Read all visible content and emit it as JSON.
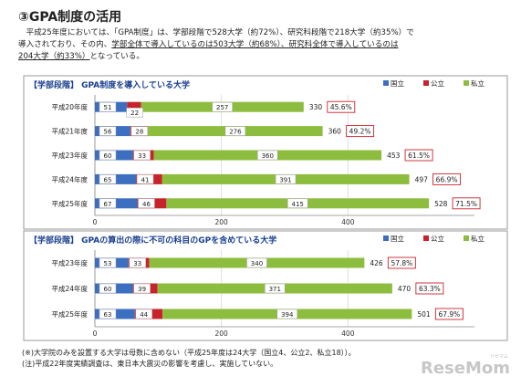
{
  "page": {
    "title": "③GPA制度の活用",
    "intro": {
      "line1": "　平成25年度においては、「GPA制度」は、学部段階で528大学（約72%）、研究科段階で218大学（約35%）で",
      "line2_a": "導入されており、その内、",
      "line2_b": "学部全体で導入しているのは503大学（約68%）、研究科全体で導入しているのは",
      "line3_a": "204大学（約33%）",
      "line3_b": "となっている。"
    },
    "notes": [
      "(※)大学院のみを設置する大学は母数に含めない（平成25年度は24大学（国立4、公立2、私立18））。",
      "(注)平成22年度実績調査は、東日本大震災の影響を考慮し、実施していない。"
    ],
    "logo": "ReseMom",
    "logo_ruby": "リセマム"
  },
  "colors": {
    "national": "#3c6fbf",
    "public": "#c8232c",
    "private": "#8dbd3e",
    "label_border": "#c8232c",
    "panel_bg": "#ffffff"
  },
  "chart_data": [
    {
      "type": "bar",
      "orientation": "horizontal",
      "stacked": true,
      "title": "【学部段階】 GPA制度を導入している大学",
      "legend": [
        "国立",
        "公立",
        "私立"
      ],
      "legend_position": "top-right",
      "categories": [
        "平成20年度",
        "平成21年度",
        "平成23年度",
        "平成24年度",
        "平成25年度"
      ],
      "series": [
        {
          "name": "国立",
          "values": [
            51,
            56,
            60,
            65,
            67
          ]
        },
        {
          "name": "公立",
          "values": [
            22,
            28,
            33,
            41,
            46
          ]
        },
        {
          "name": "私立",
          "values": [
            257,
            276,
            360,
            391,
            415
          ]
        }
      ],
      "totals": [
        330,
        360,
        453,
        497,
        528
      ],
      "percentages": [
        "45.6%",
        "49.2%",
        "61.5%",
        "66.9%",
        "71.5%"
      ],
      "xlim": [
        0,
        600
      ],
      "xticks": [
        0,
        200,
        400
      ],
      "grid": true
    },
    {
      "type": "bar",
      "orientation": "horizontal",
      "stacked": true,
      "title": "【学部段階】 GPAの算出の際に不可の科目のGPを含めている大学",
      "legend": [
        "国立",
        "公立",
        "私立"
      ],
      "legend_position": "top-right",
      "categories": [
        "平成23年度",
        "平成24年度",
        "平成25年度"
      ],
      "series": [
        {
          "name": "国立",
          "values": [
            53,
            60,
            63
          ]
        },
        {
          "name": "公立",
          "values": [
            33,
            39,
            44
          ]
        },
        {
          "name": "私立",
          "values": [
            340,
            371,
            394
          ]
        }
      ],
      "totals": [
        426,
        470,
        501
      ],
      "percentages": [
        "57.8%",
        "63.3%",
        "67.9%"
      ],
      "xlim": [
        0,
        600
      ],
      "xticks": [
        0,
        200,
        400
      ],
      "grid": true
    }
  ]
}
